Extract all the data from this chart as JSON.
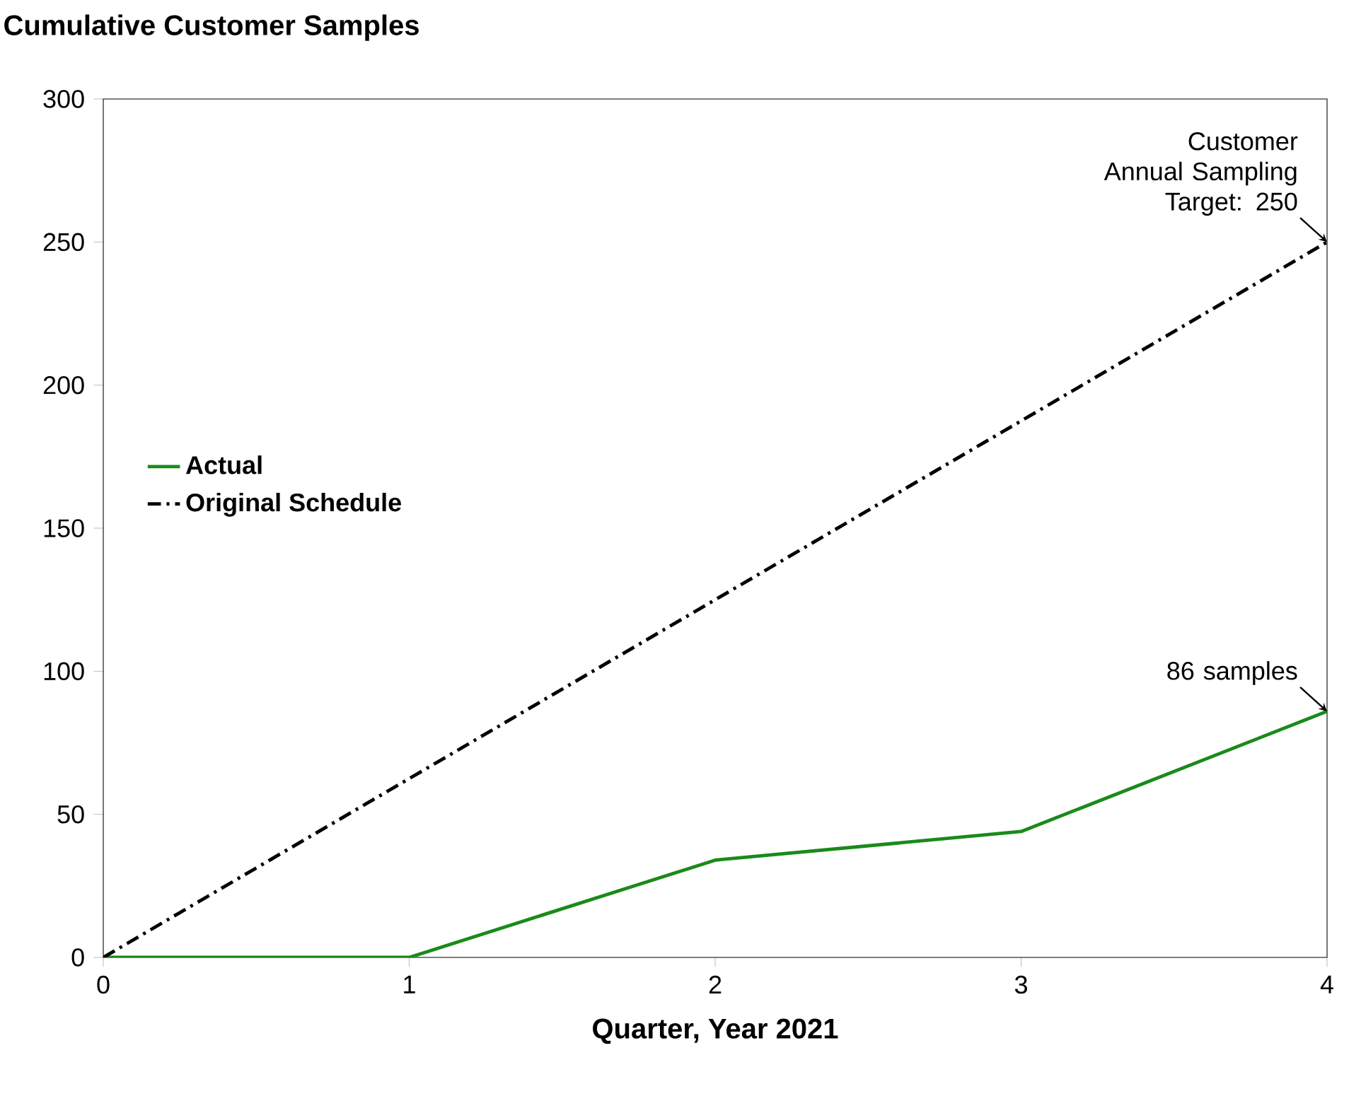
{
  "chart_data": {
    "type": "line",
    "title": "Cumulative Customer Samples",
    "xlabel": "Quarter, Year 2021",
    "x": [
      0,
      1,
      2,
      3,
      4
    ],
    "series": [
      {
        "name": "Actual",
        "color": "#1a8a1a",
        "values": [
          0,
          0,
          34,
          44,
          86
        ],
        "line_style": "solid"
      },
      {
        "name": "Original Schedule",
        "color": "#000000",
        "values": [
          0,
          62.5,
          125,
          187.5,
          250
        ],
        "line_style": "dashdotted"
      }
    ],
    "xlim": [
      0,
      4
    ],
    "ylim": [
      0,
      300
    ],
    "xticks": [
      0,
      1,
      2,
      3,
      4
    ],
    "yticks": [
      0,
      50,
      100,
      150,
      200,
      250,
      300
    ],
    "legend": "left",
    "grid": false,
    "marker": "none",
    "annotations": [
      {
        "text": "Customer Annual Sampling Target:  250",
        "x": 4,
        "y": 250
      },
      {
        "text": "86 samples",
        "x": 4,
        "y": 86
      }
    ]
  }
}
